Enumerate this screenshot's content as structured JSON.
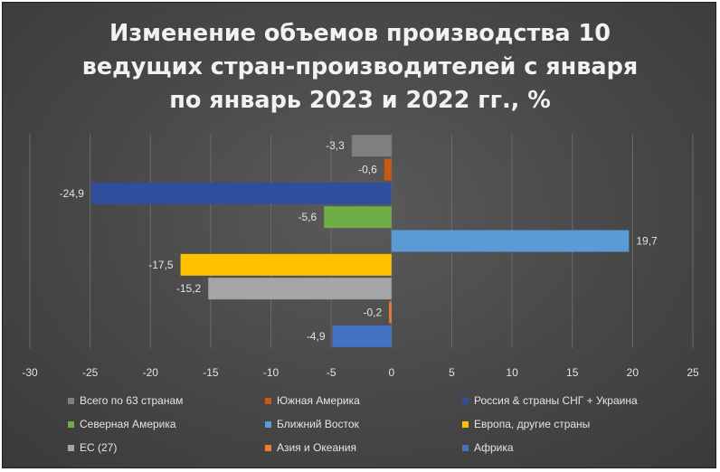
{
  "chart_data": {
    "type": "bar",
    "orientation": "horizontal",
    "title": [
      "Изменение объемов производства 10",
      "ведущих стран-производителей с января",
      "по январь 2023 и 2022 гг., %"
    ],
    "series": [
      {
        "name": "Всего по 63 странам",
        "value": -3.3,
        "label": "-3,3",
        "color": "#7f7f7f"
      },
      {
        "name": "Южная Америка",
        "value": -0.6,
        "label": "-0,6",
        "color": "#c55a11"
      },
      {
        "name": "Россия & страны СНГ + Украина",
        "value": -24.9,
        "label": "-24,9",
        "color": "#2f4f9e"
      },
      {
        "name": "Северная Америка",
        "value": -5.6,
        "label": "-5,6",
        "color": "#70ad47"
      },
      {
        "name": "Ближний Восток",
        "value": 19.7,
        "label": "19,7",
        "color": "#5b9bd5"
      },
      {
        "name": "Европа, другие страны",
        "value": -17.5,
        "label": "-17,5",
        "color": "#ffc000"
      },
      {
        "name": "ЕС (27)",
        "value": -15.2,
        "label": "-15,2",
        "color": "#a5a5a5"
      },
      {
        "name": "Азия и Океания",
        "value": -0.2,
        "label": "-0,2",
        "color": "#ed7d31"
      },
      {
        "name": "Африка",
        "value": -4.9,
        "label": "-4,9",
        "color": "#4472c4"
      }
    ],
    "xlim": [
      -30,
      25
    ],
    "xticks": [
      "-30",
      "-25",
      "-20",
      "-15",
      "-10",
      "-5",
      "0",
      "5",
      "10",
      "15",
      "20",
      "25"
    ],
    "grid": true,
    "legend_position": "bottom"
  }
}
